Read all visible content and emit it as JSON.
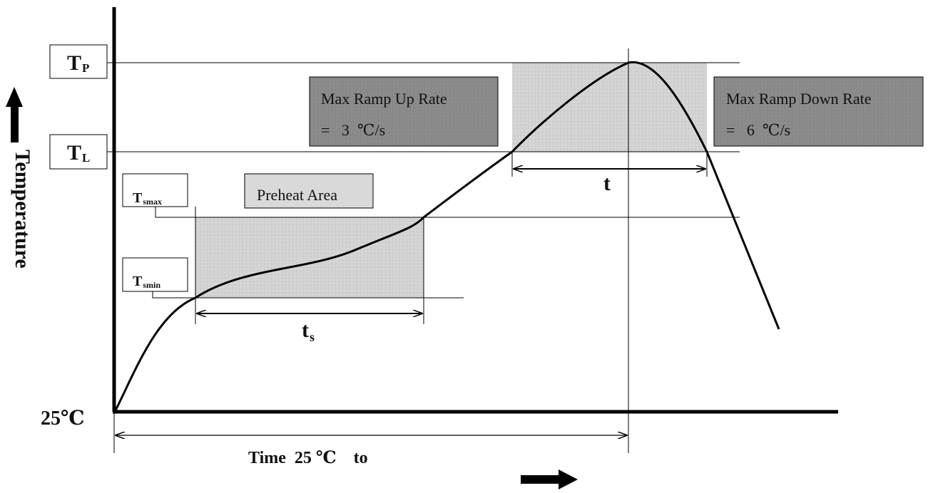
{
  "y_axis": {
    "label": "Temperature",
    "origin_label": "25℃"
  },
  "x_axis": {
    "label": "Time  25 ℃    to"
  },
  "levels": [
    {
      "id": "tp",
      "main": "T",
      "sub": "P"
    },
    {
      "id": "tl",
      "main": "T",
      "sub": "L"
    },
    {
      "id": "tsmax",
      "main": "T",
      "sub": "smax"
    },
    {
      "id": "tsmin",
      "main": "T",
      "sub": "smin"
    }
  ],
  "boxes": {
    "ramp_up": {
      "line1": "Max Ramp Up Rate",
      "line2": "=   3  ℃/s"
    },
    "ramp_down": {
      "line1": "Max Ramp Down Rate",
      "line2": "=   6  ℃/s"
    },
    "preheat": {
      "label": "Preheat Area"
    }
  },
  "intervals": {
    "ts": {
      "main": "t",
      "sub": "s"
    },
    "t": {
      "label": "t"
    }
  },
  "colors": {
    "curve": "#000000",
    "shaded_region": "#d6d6d6",
    "dark_box": "#8c8c8c",
    "light_box": "#d9d9d9"
  }
}
